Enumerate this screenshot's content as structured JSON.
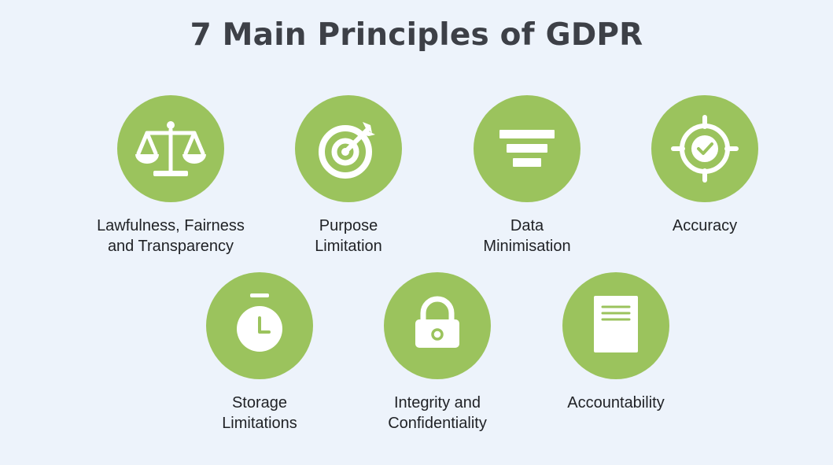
{
  "title": "7 Main Principles of GDPR",
  "accent_color": "#9bc35d",
  "background_color": "#edf3fb",
  "principles": [
    {
      "label": "Lawfulness, Fairness\nand Transparency",
      "icon": "scales-icon"
    },
    {
      "label": "Purpose\nLimitation",
      "icon": "target-icon"
    },
    {
      "label": "Data\nMinimisation",
      "icon": "funnel-bars-icon"
    },
    {
      "label": "Accuracy",
      "icon": "crosshair-check-icon"
    },
    {
      "label": "Storage\nLimitations",
      "icon": "stopwatch-icon"
    },
    {
      "label": "Integrity and\nConfidentiality",
      "icon": "padlock-icon"
    },
    {
      "label": "Accountability",
      "icon": "document-icon"
    }
  ]
}
